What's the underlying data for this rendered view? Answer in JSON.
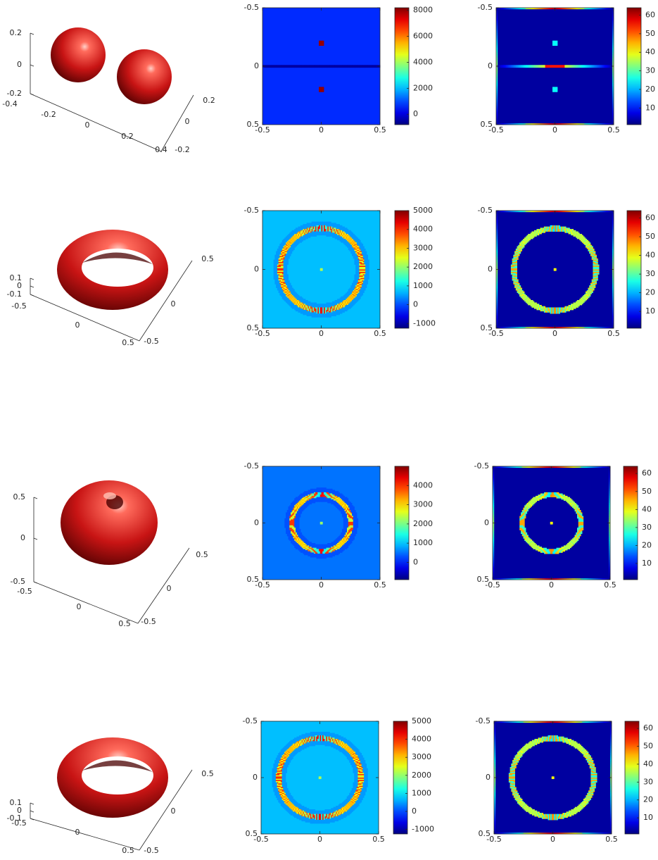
{
  "colors": {
    "surface_light": "#ff6b5c",
    "surface_mid": "#c81414",
    "surface_dark": "#4a0000",
    "axis": "#262626",
    "colormap": "jet"
  },
  "chart_data": [
    {
      "type": "surface3d",
      "shape": "two-spheres",
      "row": 0,
      "x_ticks": [
        "-0.4",
        "-0.2",
        "0",
        "0.2",
        "0.4"
      ],
      "y_ticks": [
        "-0.2",
        "0",
        "0.2"
      ],
      "z_ticks": [
        "0.2",
        "0",
        "-0.2"
      ],
      "grid": false
    },
    {
      "type": "heatmap",
      "row": 0,
      "col": 1,
      "pattern": "two-dots",
      "xlim": [
        -0.5,
        0.5
      ],
      "ylim": [
        -0.5,
        0.5
      ],
      "x_ticks": [
        "-0.5",
        "0",
        "0.5"
      ],
      "y_ticks": [
        "-0.5",
        "0",
        "0.5"
      ],
      "colorbar": {
        "range": [
          -800,
          8200
        ],
        "ticks": [
          "8000",
          "6000",
          "4000",
          "2000",
          "0"
        ],
        "tick_values": [
          8000,
          6000,
          4000,
          2000,
          0
        ]
      },
      "background_value": 700,
      "dot_value": 8000,
      "dot_y": [
        -0.2,
        0.2
      ],
      "line_value": -500
    },
    {
      "type": "heatmap",
      "row": 0,
      "col": 2,
      "pattern": "two-dots",
      "xlim": [
        -0.5,
        0.5
      ],
      "ylim": [
        -0.5,
        0.5
      ],
      "x_ticks": [
        "-0.5",
        "0",
        "0.5"
      ],
      "y_ticks": [
        "-0.5",
        "0",
        "0.5"
      ],
      "colorbar": {
        "range": [
          1,
          64
        ],
        "ticks": [
          "60",
          "50",
          "40",
          "30",
          "20",
          "10"
        ],
        "tick_values": [
          60,
          50,
          40,
          30,
          20,
          10
        ]
      },
      "background_value": 3,
      "dot_value": 25,
      "dot_y": [
        -0.2,
        0.2
      ],
      "line_value": 45,
      "edge_value": 55
    },
    {
      "type": "surface3d",
      "shape": "torus",
      "row": 1,
      "x_ticks": [
        "-0.5",
        "0",
        "0.5"
      ],
      "y_ticks": [
        "-0.5",
        "0",
        "0.5"
      ],
      "z_ticks": [
        "0.1",
        "0",
        "-0.1"
      ],
      "grid": false
    },
    {
      "type": "heatmap",
      "row": 1,
      "col": 1,
      "pattern": "ring",
      "xlim": [
        -0.5,
        0.5
      ],
      "ylim": [
        -0.5,
        0.5
      ],
      "x_ticks": [
        "-0.5",
        "0",
        "0.5"
      ],
      "y_ticks": [
        "-0.5",
        "0",
        "0.5"
      ],
      "colorbar": {
        "range": [
          -1250,
          5000
        ],
        "ticks": [
          "5000",
          "4000",
          "3000",
          "2000",
          "1000",
          "0",
          "-1000"
        ],
        "tick_values": [
          5000,
          4000,
          3000,
          2000,
          1000,
          0,
          -1000
        ]
      },
      "background_value": 700,
      "ring_radius": 0.35,
      "ring_max": 4500,
      "ring_min": -800,
      "center_value": 2200
    },
    {
      "type": "heatmap",
      "row": 1,
      "col": 2,
      "pattern": "ring",
      "xlim": [
        -0.5,
        0.5
      ],
      "ylim": [
        -0.5,
        0.5
      ],
      "x_ticks": [
        "-0.5",
        "0",
        "0.5"
      ],
      "y_ticks": [
        "-0.5",
        "0",
        "0.5"
      ],
      "colorbar": {
        "range": [
          1,
          64
        ],
        "ticks": [
          "60",
          "50",
          "40",
          "30",
          "20",
          "10"
        ],
        "tick_values": [
          60,
          50,
          40,
          30,
          20,
          10
        ]
      },
      "background_value": 3,
      "ring_radius": 0.35,
      "ring_max": 50,
      "ring_min": 8,
      "center_value": 40,
      "edge_value": 55
    },
    {
      "type": "surface3d",
      "shape": "fat-torus",
      "row": 2,
      "x_ticks": [
        "-0.5",
        "0",
        "0.5"
      ],
      "y_ticks": [
        "-0.5",
        "0",
        "0.5"
      ],
      "z_ticks": [
        "0.5",
        "0",
        "-0.5"
      ],
      "grid": false
    },
    {
      "type": "heatmap",
      "row": 2,
      "col": 1,
      "pattern": "ring",
      "xlim": [
        -0.5,
        0.5
      ],
      "ylim": [
        -0.5,
        0.5
      ],
      "x_ticks": [
        "-0.5",
        "0",
        "0.5"
      ],
      "y_ticks": [
        "-0.5",
        "0",
        "0.5"
      ],
      "colorbar": {
        "range": [
          -900,
          5000
        ],
        "ticks": [
          "4000",
          "3000",
          "2000",
          "1000",
          "0"
        ],
        "tick_values": [
          4000,
          3000,
          2000,
          1000,
          0
        ]
      },
      "background_value": 500,
      "ring_radius": 0.25,
      "ring_max": 4500,
      "ring_min": -800,
      "center_value": 2200
    },
    {
      "type": "heatmap",
      "row": 2,
      "col": 2,
      "pattern": "ring",
      "xlim": [
        -0.5,
        0.5
      ],
      "ylim": [
        -0.5,
        0.5
      ],
      "x_ticks": [
        "-0.5",
        "0",
        "0.5"
      ],
      "y_ticks": [
        "-0.5",
        "0",
        "0.5"
      ],
      "colorbar": {
        "range": [
          1,
          64
        ],
        "ticks": [
          "60",
          "50",
          "40",
          "30",
          "20",
          "10"
        ],
        "tick_values": [
          60,
          50,
          40,
          30,
          20,
          10
        ]
      },
      "background_value": 3,
      "ring_radius": 0.25,
      "ring_max": 50,
      "ring_min": 8,
      "center_value": 40,
      "edge_value": 55
    },
    {
      "type": "surface3d",
      "shape": "torus",
      "row": 3,
      "x_ticks": [
        "-0.5",
        "0",
        "0.5"
      ],
      "y_ticks": [
        "-0.5",
        "0",
        "0.5"
      ],
      "z_ticks": [
        "0.1",
        "0",
        "-0.1"
      ],
      "grid": false
    },
    {
      "type": "heatmap",
      "row": 3,
      "col": 1,
      "pattern": "ring",
      "xlim": [
        -0.5,
        0.5
      ],
      "ylim": [
        -0.5,
        0.5
      ],
      "x_ticks": [
        "-0.5",
        "0",
        "0.5"
      ],
      "y_ticks": [
        "-0.5",
        "0",
        "0.5"
      ],
      "colorbar": {
        "range": [
          -1250,
          5000
        ],
        "ticks": [
          "5000",
          "4000",
          "3000",
          "2000",
          "1000",
          "0",
          "-1000"
        ],
        "tick_values": [
          5000,
          4000,
          3000,
          2000,
          1000,
          0,
          -1000
        ]
      },
      "background_value": 700,
      "ring_radius": 0.35,
      "ring_max": 4500,
      "ring_min": -800,
      "center_value": 2200
    },
    {
      "type": "heatmap",
      "row": 3,
      "col": 2,
      "pattern": "ring",
      "xlim": [
        -0.5,
        0.5
      ],
      "ylim": [
        -0.5,
        0.5
      ],
      "x_ticks": [
        "-0.5",
        "0",
        "0.5"
      ],
      "y_ticks": [
        "-0.5",
        "0",
        "0.5"
      ],
      "colorbar": {
        "range": [
          1,
          64
        ],
        "ticks": [
          "60",
          "50",
          "40",
          "30",
          "20",
          "10"
        ],
        "tick_values": [
          60,
          50,
          40,
          30,
          20,
          10
        ]
      },
      "background_value": 3,
      "ring_radius": 0.35,
      "ring_max": 50,
      "ring_min": 8,
      "center_value": 40,
      "edge_value": 55
    }
  ]
}
